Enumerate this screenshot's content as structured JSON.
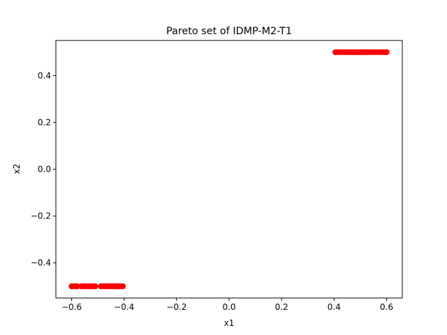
{
  "chart_data": {
    "type": "scatter",
    "title": "Pareto set of IDMP-M2-T1",
    "xlabel": "x1",
    "ylabel": "x2",
    "xlim": [
      -0.66,
      0.66
    ],
    "ylim": [
      -0.55,
      0.55
    ],
    "grid": false,
    "marker_color": "#ff0000",
    "x_ticks": [
      -0.6,
      -0.4,
      -0.2,
      0.0,
      0.2,
      0.4,
      0.6
    ],
    "x_tick_labels": [
      "−0.6",
      "−0.4",
      "−0.2",
      "0.0",
      "0.2",
      "0.4",
      "0.6"
    ],
    "y_ticks": [
      -0.4,
      -0.2,
      0.0,
      0.2,
      0.4
    ],
    "y_tick_labels": [
      "−0.4",
      "−0.2",
      "0.0",
      "0.2",
      "0.4"
    ],
    "series": [
      {
        "points": [
          [
            -0.6,
            -0.5
          ],
          [
            -0.592,
            -0.5
          ],
          [
            -0.585,
            -0.5
          ],
          [
            -0.578,
            -0.5
          ],
          [
            -0.562,
            -0.5
          ],
          [
            -0.555,
            -0.5
          ],
          [
            -0.548,
            -0.5
          ],
          [
            -0.54,
            -0.5
          ],
          [
            -0.532,
            -0.5
          ],
          [
            -0.525,
            -0.5
          ],
          [
            -0.518,
            -0.5
          ],
          [
            -0.51,
            -0.5
          ],
          [
            -0.488,
            -0.5
          ],
          [
            -0.48,
            -0.5
          ],
          [
            -0.472,
            -0.5
          ],
          [
            -0.465,
            -0.5
          ],
          [
            -0.458,
            -0.5
          ],
          [
            -0.45,
            -0.5
          ],
          [
            -0.442,
            -0.5
          ],
          [
            -0.435,
            -0.5
          ],
          [
            -0.428,
            -0.5
          ],
          [
            -0.42,
            -0.5
          ],
          [
            -0.412,
            -0.5
          ],
          [
            -0.405,
            -0.5
          ],
          [
            0.405,
            0.5
          ],
          [
            0.412,
            0.5
          ],
          [
            0.42,
            0.5
          ],
          [
            0.43,
            0.5
          ],
          [
            0.44,
            0.5
          ],
          [
            0.45,
            0.5
          ],
          [
            0.458,
            0.5
          ],
          [
            0.466,
            0.5
          ],
          [
            0.474,
            0.5
          ],
          [
            0.482,
            0.5
          ],
          [
            0.49,
            0.5
          ],
          [
            0.498,
            0.5
          ],
          [
            0.506,
            0.5
          ],
          [
            0.514,
            0.5
          ],
          [
            0.522,
            0.5
          ],
          [
            0.53,
            0.5
          ],
          [
            0.54,
            0.5
          ],
          [
            0.55,
            0.5
          ],
          [
            0.56,
            0.5
          ],
          [
            0.57,
            0.5
          ],
          [
            0.58,
            0.5
          ],
          [
            0.588,
            0.5
          ],
          [
            0.595,
            0.5
          ],
          [
            0.6,
            0.5
          ]
        ]
      }
    ]
  }
}
